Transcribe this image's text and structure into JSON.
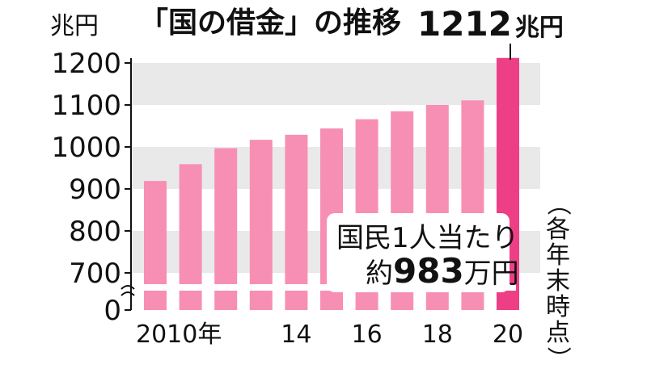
{
  "chart_data": {
    "type": "bar",
    "title": "「国の借金」の推移",
    "ylabel": "兆円",
    "categories": [
      "2010",
      "2011",
      "2012",
      "2013",
      "2014",
      "2015",
      "2016",
      "2017",
      "2018",
      "2019",
      "2020"
    ],
    "values": [
      919,
      959,
      997,
      1017,
      1029,
      1044,
      1066,
      1085,
      1100,
      1111,
      1212
    ],
    "x_tick_labels": [
      "2010年",
      "",
      "",
      "",
      "14",
      "",
      "16",
      "",
      "18",
      "",
      "20"
    ],
    "y_ticks": [
      0,
      700,
      800,
      900,
      1000,
      1100,
      1200
    ],
    "y_tick_labels": [
      "0",
      "700",
      "800",
      "900",
      "1000",
      "1100",
      "1200"
    ],
    "ylim": [
      650,
      1230
    ],
    "axis_break": true,
    "highlight_index": 10,
    "callout": {
      "value": "1212",
      "unit": "兆円"
    },
    "note": {
      "line1": "国民1人当たり",
      "prefix": "約",
      "value": "983",
      "unit": "万円"
    },
    "side_note": "（各年末時点）",
    "colors": {
      "bar": "#f78fb4",
      "highlight_bar": "#ee3f86",
      "band": "#e9e9e9",
      "text": "#111111"
    },
    "grid": "horizontal bands"
  }
}
